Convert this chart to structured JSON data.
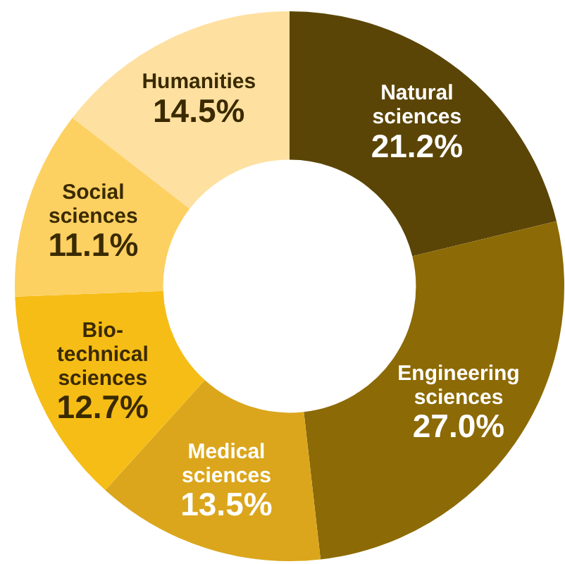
{
  "chart_data": {
    "type": "donut",
    "categories": [
      "Natural\nsciences",
      "Engineering\nsciences",
      "Medical\nsciences",
      "Bio-\ntechnical\nsciences",
      "Social\nsciences",
      "Humanities"
    ],
    "values": [
      21.2,
      27.0,
      13.5,
      12.7,
      11.1,
      14.5
    ],
    "value_labels": [
      "21.2%",
      "27.0%",
      "13.5%",
      "12.7%",
      "11.1%",
      "14.5%"
    ],
    "colors": [
      "#5b4506",
      "#8c6a05",
      "#dba61c",
      "#f6bd16",
      "#fdd062",
      "#fee0a0"
    ],
    "legend": false
  }
}
